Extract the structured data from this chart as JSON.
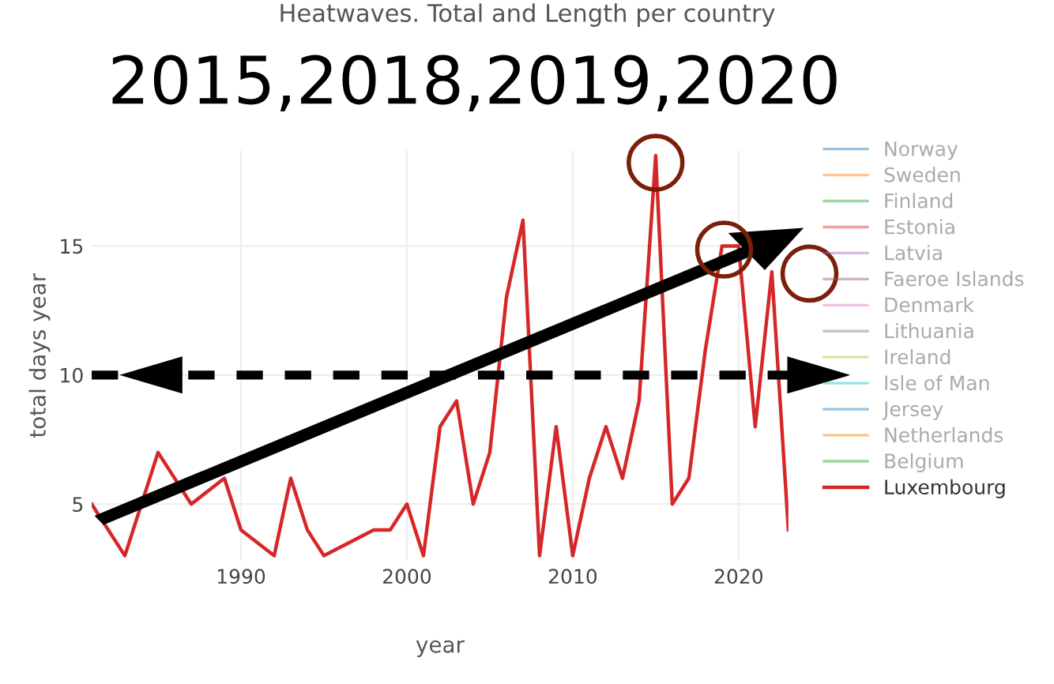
{
  "chart_data": {
    "type": "line",
    "title": "Heatwaves. Total and Length per country",
    "xlabel": "year",
    "ylabel": "total days year",
    "annotations": [
      "2015,2018,2019,2020"
    ],
    "x": [
      1981,
      1983,
      1985,
      1987,
      1989,
      1990,
      1992,
      1993,
      1994,
      1995,
      1998,
      1999,
      2000,
      2001,
      2002,
      2003,
      2004,
      2005,
      2006,
      2007,
      2008,
      2009,
      2010,
      2011,
      2012,
      2013,
      2014,
      2015,
      2016,
      2017,
      2018,
      2019,
      2020,
      2021,
      2022,
      2023
    ],
    "series": [
      {
        "name": "Norway",
        "color": "#1f77b4",
        "values": [
          null,
          null,
          null,
          null,
          null,
          null,
          null,
          null,
          null,
          null,
          null,
          null,
          null,
          null,
          null,
          null,
          null,
          null,
          null,
          null,
          null,
          null,
          null,
          null,
          null,
          null,
          null,
          null,
          null,
          null,
          null,
          null,
          null,
          null,
          null,
          null
        ]
      },
      {
        "name": "Sweden",
        "color": "#ff7f0e",
        "values": [
          null,
          null,
          null,
          null,
          null,
          null,
          null,
          null,
          null,
          null,
          null,
          null,
          null,
          null,
          null,
          null,
          null,
          null,
          null,
          null,
          null,
          null,
          null,
          null,
          null,
          null,
          null,
          null,
          null,
          null,
          null,
          null,
          null,
          null,
          null,
          null
        ]
      },
      {
        "name": "Finland",
        "color": "#2ca02c",
        "values": [
          null,
          null,
          null,
          null,
          null,
          null,
          null,
          null,
          null,
          null,
          null,
          null,
          null,
          null,
          null,
          null,
          null,
          null,
          null,
          null,
          null,
          null,
          null,
          null,
          null,
          null,
          null,
          null,
          null,
          null,
          null,
          null,
          null,
          null,
          null,
          null
        ]
      },
      {
        "name": "Estonia",
        "color": "#d62728",
        "values": [
          null,
          null,
          null,
          null,
          null,
          null,
          null,
          null,
          null,
          null,
          null,
          null,
          null,
          null,
          null,
          null,
          null,
          null,
          null,
          null,
          null,
          null,
          null,
          null,
          null,
          null,
          null,
          null,
          null,
          null,
          null,
          null,
          null,
          null,
          null,
          null
        ]
      },
      {
        "name": "Latvia",
        "color": "#9467bd",
        "values": [
          null,
          null,
          null,
          null,
          null,
          null,
          null,
          null,
          null,
          null,
          null,
          null,
          null,
          null,
          null,
          null,
          null,
          null,
          null,
          null,
          null,
          null,
          null,
          null,
          null,
          null,
          null,
          null,
          null,
          null,
          null,
          null,
          null,
          null,
          null,
          null
        ]
      },
      {
        "name": "Faeroe Islands",
        "color": "#8c564b",
        "values": [
          null,
          null,
          null,
          null,
          null,
          null,
          null,
          null,
          null,
          null,
          null,
          null,
          null,
          null,
          null,
          null,
          null,
          null,
          null,
          null,
          null,
          null,
          null,
          null,
          null,
          null,
          null,
          null,
          null,
          null,
          null,
          null,
          null,
          null,
          null,
          null
        ]
      },
      {
        "name": "Denmark",
        "color": "#e377c2",
        "values": [
          null,
          null,
          null,
          null,
          null,
          null,
          null,
          null,
          null,
          null,
          null,
          null,
          null,
          null,
          null,
          null,
          null,
          null,
          null,
          null,
          null,
          null,
          null,
          null,
          null,
          null,
          null,
          null,
          null,
          null,
          null,
          null,
          null,
          null,
          null,
          null
        ]
      },
      {
        "name": "Lithuania",
        "color": "#7f7f7f",
        "values": [
          null,
          null,
          null,
          null,
          null,
          null,
          null,
          null,
          null,
          null,
          null,
          null,
          null,
          null,
          null,
          null,
          null,
          null,
          null,
          null,
          null,
          null,
          null,
          null,
          null,
          null,
          null,
          null,
          null,
          null,
          null,
          null,
          null,
          null,
          null,
          null
        ]
      },
      {
        "name": "Ireland",
        "color": "#bcbd22",
        "values": [
          null,
          null,
          null,
          null,
          null,
          null,
          null,
          null,
          null,
          null,
          null,
          null,
          null,
          null,
          null,
          null,
          null,
          null,
          null,
          null,
          null,
          null,
          null,
          null,
          null,
          null,
          null,
          null,
          null,
          null,
          null,
          null,
          null,
          null,
          null,
          null
        ]
      },
      {
        "name": "Isle of Man",
        "color": "#17becf",
        "values": [
          null,
          null,
          null,
          null,
          null,
          null,
          null,
          null,
          null,
          null,
          null,
          null,
          null,
          null,
          null,
          null,
          null,
          null,
          null,
          null,
          null,
          null,
          null,
          null,
          null,
          null,
          null,
          null,
          null,
          null,
          null,
          null,
          null,
          null,
          null,
          null
        ]
      },
      {
        "name": "Jersey",
        "color": "#1f77b4",
        "values": [
          null,
          null,
          null,
          null,
          null,
          null,
          null,
          null,
          null,
          null,
          null,
          null,
          null,
          null,
          null,
          null,
          null,
          null,
          null,
          null,
          null,
          null,
          null,
          null,
          null,
          null,
          null,
          null,
          null,
          null,
          null,
          null,
          null,
          null,
          null,
          null
        ]
      },
      {
        "name": "Netherlands",
        "color": "#ff7f0e",
        "values": [
          null,
          null,
          null,
          null,
          null,
          null,
          null,
          null,
          null,
          null,
          null,
          null,
          null,
          null,
          null,
          null,
          null,
          null,
          null,
          null,
          null,
          null,
          null,
          null,
          null,
          null,
          null,
          null,
          null,
          null,
          null,
          null,
          null,
          null,
          null,
          null
        ]
      },
      {
        "name": "Belgium",
        "color": "#2ca02c",
        "values": [
          null,
          null,
          null,
          null,
          null,
          null,
          null,
          null,
          null,
          null,
          null,
          null,
          null,
          null,
          null,
          null,
          null,
          null,
          null,
          null,
          null,
          null,
          null,
          null,
          null,
          null,
          null,
          null,
          null,
          null,
          null,
          null,
          null,
          null,
          null,
          null
        ]
      },
      {
        "name": "Luxembourg",
        "color": "#d62728",
        "values": [
          5,
          3,
          7,
          5,
          6,
          4,
          3,
          6,
          4,
          3,
          4,
          4,
          5,
          3,
          8,
          9,
          5,
          7,
          13,
          16,
          3,
          8,
          3,
          6,
          8,
          6,
          9,
          18.5,
          5,
          6,
          11,
          15,
          15,
          8,
          14,
          4
        ]
      }
    ],
    "xlim": [
      1981,
      2023
    ],
    "xticks": [
      1990,
      2000,
      2010,
      2020
    ],
    "ylim": [
      2.8,
      18.7
    ],
    "yticks": [
      5,
      10,
      15
    ],
    "ref_lines": [
      {
        "axis": "y",
        "value": 10,
        "color": "#000000",
        "line_style": "dashed"
      }
    ],
    "grid": true,
    "legend": "right",
    "marker": "none",
    "line_style": "solid"
  }
}
